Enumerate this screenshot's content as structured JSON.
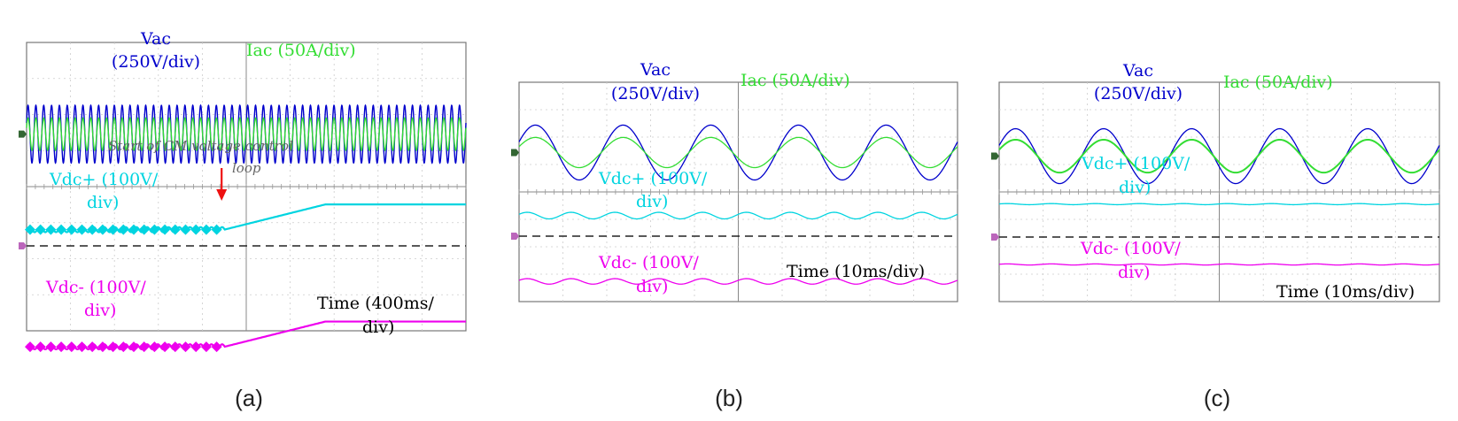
{
  "figure": {
    "panel_captions": [
      "(a)",
      "(b)",
      "(c)"
    ]
  },
  "chart_data": [
    {
      "type": "line",
      "panel": "(a)",
      "channels": [
        {
          "name": "Vac",
          "label_line1": "Vac",
          "label_line2": "(250V/div)",
          "color": "#0000cc",
          "shape": "dense-sine",
          "cycles": 56,
          "amplitude_div": 0.8,
          "offset_div": 3.1
        },
        {
          "name": "Iac",
          "label_line1": "Iac (50A/div)",
          "label_line2": "",
          "color": "#33dd33",
          "shape": "dense-sine",
          "cycles": 56,
          "amplitude_div": 0.45,
          "offset_div": 3.1
        },
        {
          "name": "Vdc+",
          "label_line1": "Vdc+ (100V/",
          "label_line2": "div)",
          "color": "#00d4e0",
          "shape": "ramp",
          "start_div": 0.45,
          "ramp_start_div": 4.5,
          "ramp_end_div": 6.8,
          "end_div": 1.15,
          "ripple_before_div": 0.07
        },
        {
          "name": "Vdc-",
          "label_line1": "Vdc- (100V/",
          "label_line2": "div)",
          "color": "#ee00ee",
          "shape": "ramp",
          "start_div": -2.8,
          "ramp_start_div": 4.5,
          "ramp_end_div": 6.8,
          "end_div": -2.1,
          "ripple_before_div": 0.07
        }
      ],
      "annotation": {
        "line1": "Start of CM voltage control",
        "line2": "loop",
        "x_div": 4.5,
        "color": "#ee1111"
      },
      "time_label_line1": "Time (400ms/",
      "time_label_line2": "div)",
      "zero_reference_div": 0.0
    },
    {
      "type": "line",
      "panel": "(b)",
      "channels": [
        {
          "name": "Vac",
          "label_line1": "Vac",
          "label_line2": "(250V/div)",
          "color": "#0000cc",
          "shape": "sine",
          "cycles": 5,
          "amplitude_div": 1.0,
          "offset_div": 3.05
        },
        {
          "name": "Iac",
          "label_line1": "Iac (50A/div)",
          "label_line2": "",
          "color": "#33dd33",
          "shape": "sine",
          "cycles": 5,
          "amplitude_div": 0.55,
          "offset_div": 3.05
        },
        {
          "name": "Vdc+",
          "label_line1": "Vdc+ (100V/",
          "label_line2": "div)",
          "color": "#00d4e0",
          "shape": "sine",
          "cycles": 10,
          "amplitude_div": 0.12,
          "offset_div": 0.75
        },
        {
          "name": "Vdc-",
          "label_line1": "Vdc- (100V/",
          "label_line2": "div)",
          "color": "#ee00ee",
          "shape": "sine",
          "cycles": 10,
          "amplitude_div": 0.1,
          "offset_div": -1.65
        }
      ],
      "time_label_line1": "Time (10ms/div)",
      "time_label_line2": "",
      "zero_reference_div": 0.0
    },
    {
      "type": "line",
      "panel": "(c)",
      "channels": [
        {
          "name": "Vac",
          "label_line1": "Vac",
          "label_line2": "(250V/div)",
          "color": "#0000cc",
          "shape": "sine",
          "cycles": 5,
          "amplitude_div": 1.0,
          "offset_div": 2.95
        },
        {
          "name": "Iac",
          "label_line1": "Iac (50A/div)",
          "label_line2": "",
          "color": "#33dd33",
          "shape": "sine",
          "cycles": 5,
          "amplitude_div": 0.6,
          "offset_div": 2.95
        },
        {
          "name": "Vdc+",
          "label_line1": "Vdc+ (100V/",
          "label_line2": "div)",
          "color": "#00d4e0",
          "shape": "sine",
          "cycles": 10,
          "amplitude_div": 0.02,
          "offset_div": 1.2
        },
        {
          "name": "Vdc-",
          "label_line1": "Vdc- (100V/",
          "label_line2": "div)",
          "color": "#ee00ee",
          "shape": "sine",
          "cycles": 10,
          "amplitude_div": 0.02,
          "offset_div": -1.0
        }
      ],
      "time_label_line1": "Time (10ms/div)",
      "time_label_line2": "",
      "zero_reference_div": 0.0
    }
  ]
}
